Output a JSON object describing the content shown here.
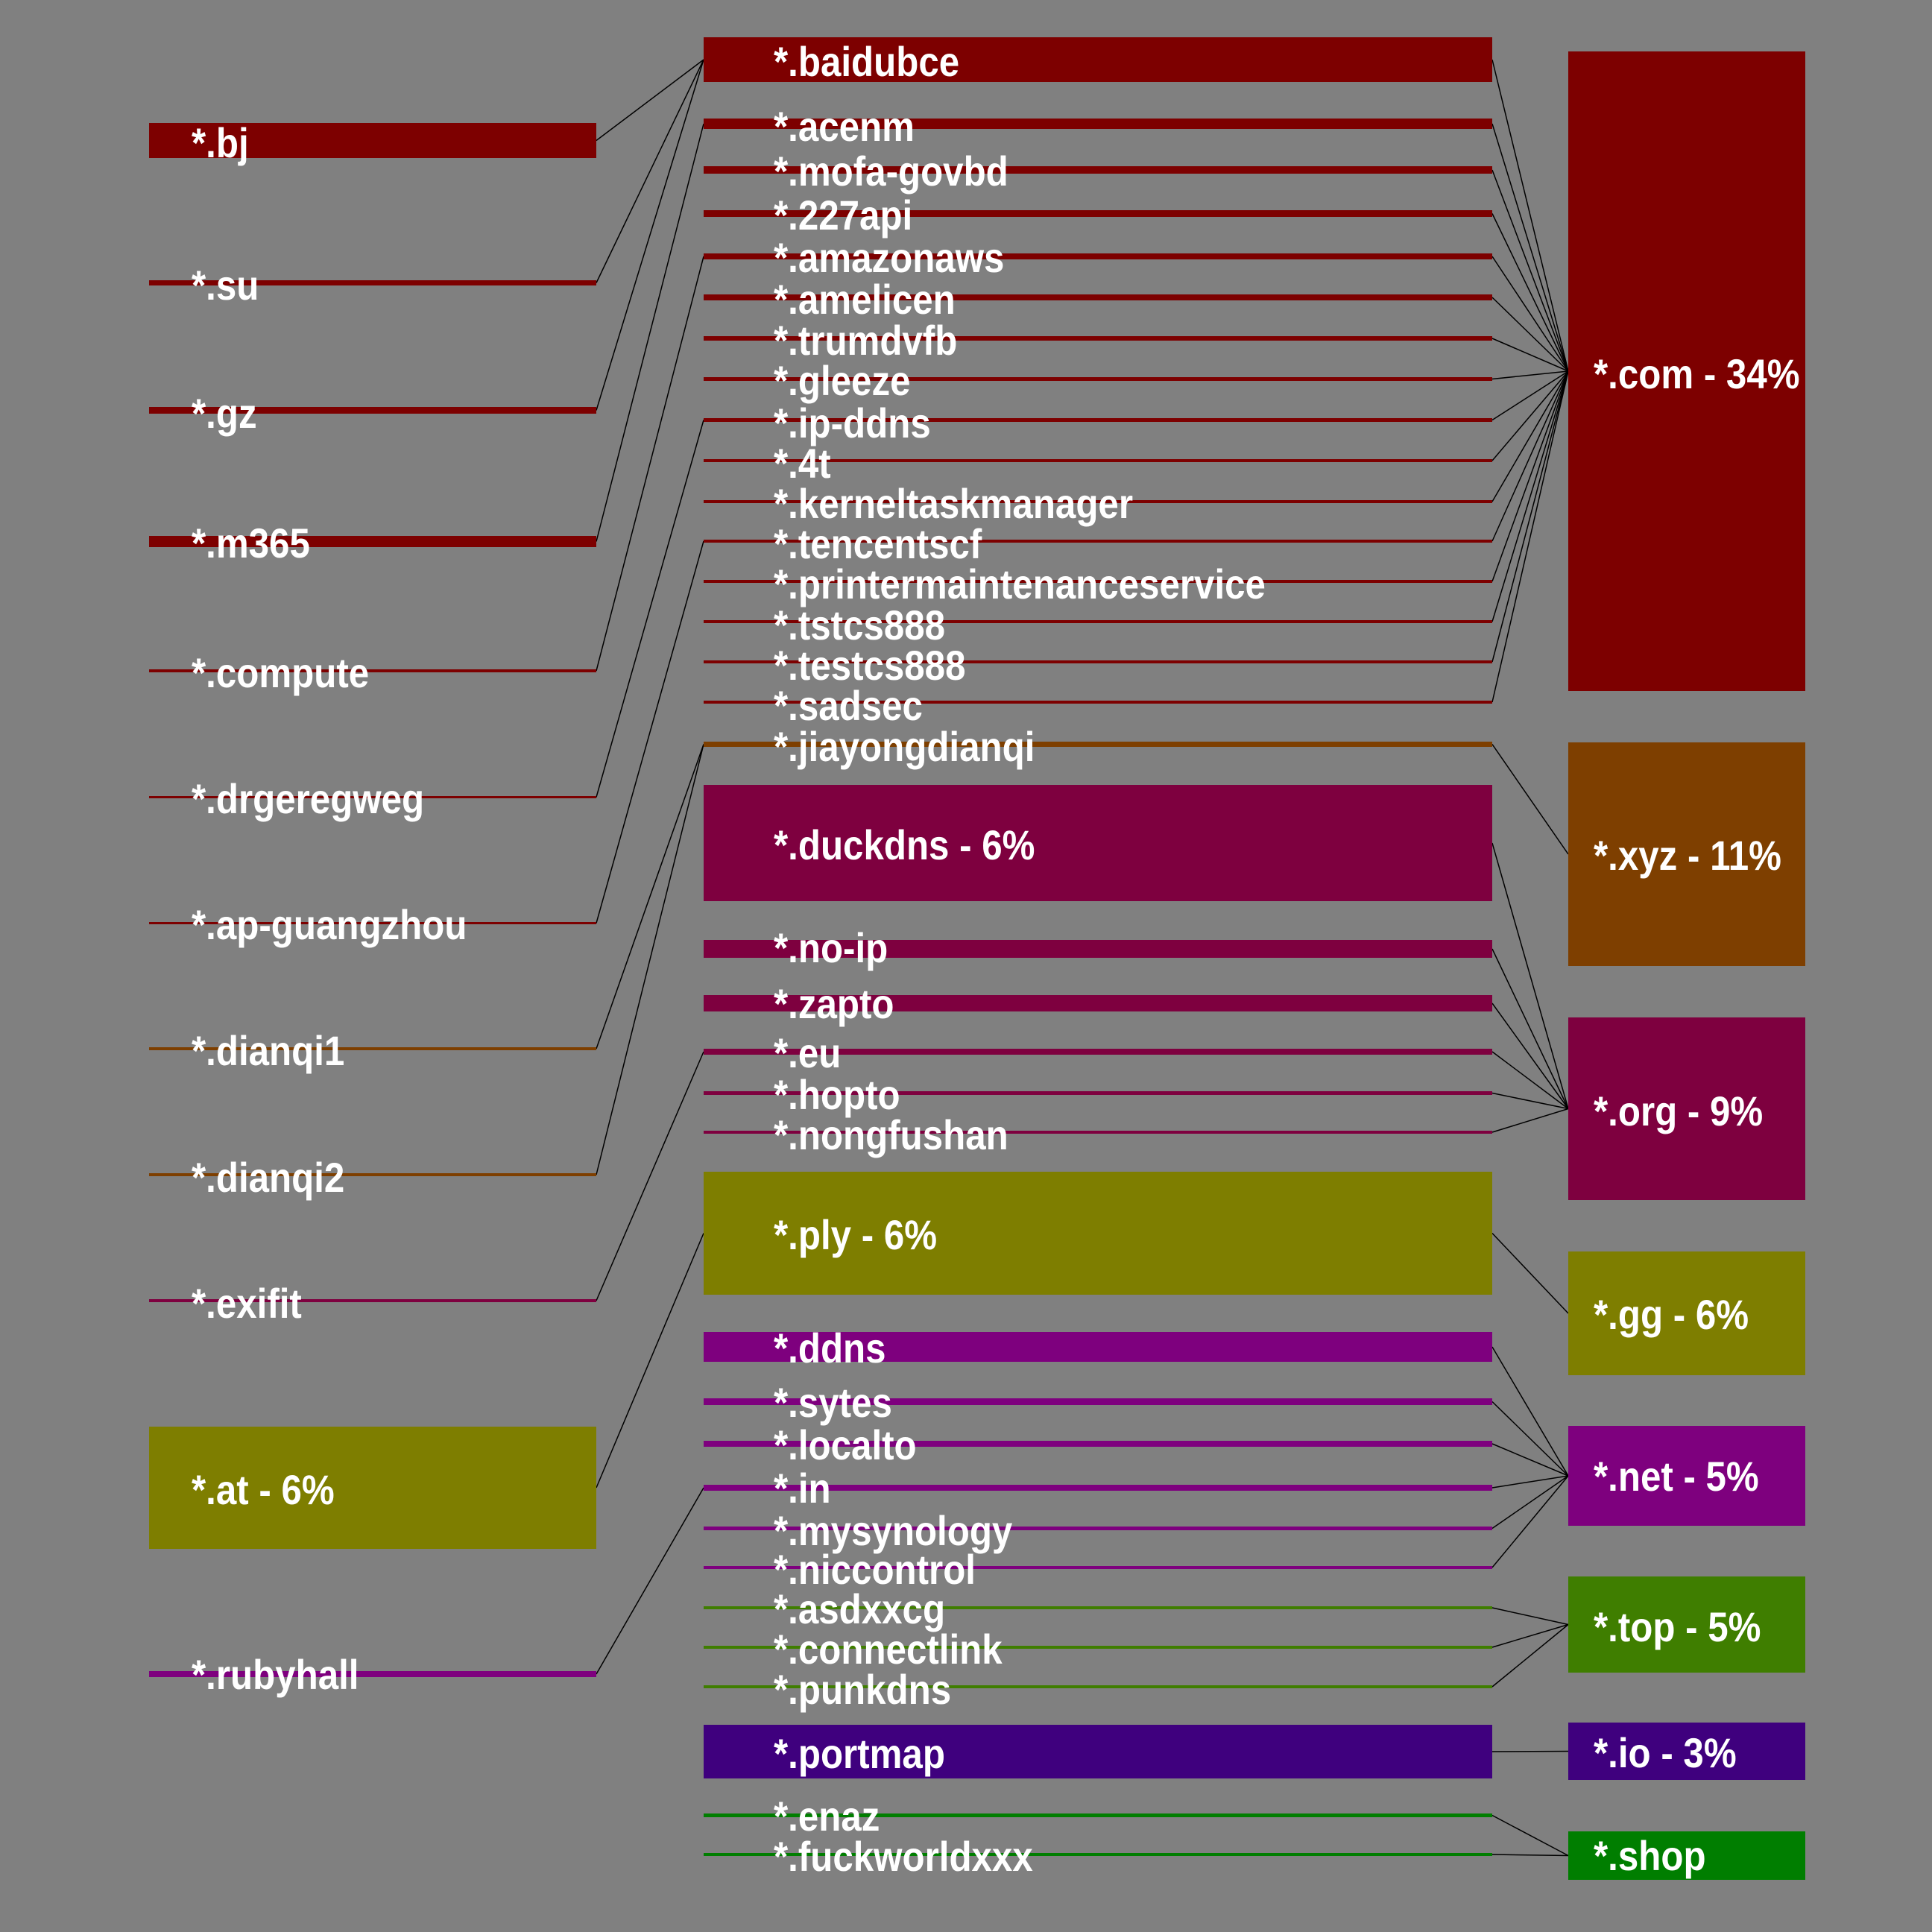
{
  "diagram": {
    "colors": {
      "background": "#808080",
      "com": "#7d0000",
      "xyz": "#7e3f00",
      "org": "#7e003f",
      "gg": "#7e7e00",
      "net": "#7e007e",
      "top": "#3f7e00",
      "io": "#3f007e",
      "shop": "#007e00",
      "link": "#000000"
    },
    "columns": {
      "left": [
        {
          "id": "bj",
          "label": "*.bj",
          "group": "com"
        },
        {
          "id": "su",
          "label": "*.su",
          "group": "com"
        },
        {
          "id": "gz",
          "label": "*.gz",
          "group": "com"
        },
        {
          "id": "m365",
          "label": "*.m365",
          "group": "com"
        },
        {
          "id": "compute",
          "label": "*.compute",
          "group": "com"
        },
        {
          "id": "drgeregweg",
          "label": "*.drgeregweg",
          "group": "com"
        },
        {
          "id": "ap-guangzhou",
          "label": "*.ap-guangzhou",
          "group": "com"
        },
        {
          "id": "dianqi1",
          "label": "*.dianqi1",
          "group": "xyz"
        },
        {
          "id": "dianqi2",
          "label": "*.dianqi2",
          "group": "xyz"
        },
        {
          "id": "exifit",
          "label": "*.exifit",
          "group": "org"
        },
        {
          "id": "at",
          "label": "*.at - 6%",
          "group": "gg"
        },
        {
          "id": "rubyhall",
          "label": "*.rubyhall",
          "group": "net"
        }
      ],
      "middle": [
        {
          "id": "baidubce",
          "label": "*.baidubce",
          "group": "com"
        },
        {
          "id": "acenm",
          "label": "*.acenm",
          "group": "com"
        },
        {
          "id": "mofa-govbd",
          "label": "*.mofa-govbd",
          "group": "com"
        },
        {
          "id": "227api",
          "label": "*.227api",
          "group": "com"
        },
        {
          "id": "amazonaws",
          "label": "*.amazonaws",
          "group": "com"
        },
        {
          "id": "amelicen",
          "label": "*.amelicen",
          "group": "com"
        },
        {
          "id": "trumdvfb",
          "label": "*.trumdvfb",
          "group": "com"
        },
        {
          "id": "gleeze",
          "label": "*.gleeze",
          "group": "com"
        },
        {
          "id": "ip-ddns",
          "label": "*.ip-ddns",
          "group": "com"
        },
        {
          "id": "4t",
          "label": "*.4t",
          "group": "com"
        },
        {
          "id": "kerneltaskmanager",
          "label": "*.kerneltaskmanager",
          "group": "com"
        },
        {
          "id": "tencentscf",
          "label": "*.tencentscf",
          "group": "com"
        },
        {
          "id": "printermaintenanceservice",
          "label": "*.printermaintenanceservice",
          "group": "com"
        },
        {
          "id": "tstcs888",
          "label": "*.tstcs888",
          "group": "com"
        },
        {
          "id": "testcs888",
          "label": "*.testcs888",
          "group": "com"
        },
        {
          "id": "sadsec",
          "label": "*.sadsec",
          "group": "com"
        },
        {
          "id": "jiayongdianqi",
          "label": "*.jiayongdianqi",
          "group": "xyz"
        },
        {
          "id": "duckdns",
          "label": "*.duckdns - 6%",
          "group": "org"
        },
        {
          "id": "no-ip",
          "label": "*.no-ip",
          "group": "org"
        },
        {
          "id": "zapto",
          "label": "*.zapto",
          "group": "org"
        },
        {
          "id": "eu",
          "label": "*.eu",
          "group": "org"
        },
        {
          "id": "hopto",
          "label": "*.hopto",
          "group": "org"
        },
        {
          "id": "nongfushan",
          "label": "*.nongfushan",
          "group": "org"
        },
        {
          "id": "ply",
          "label": "*.ply - 6%",
          "group": "gg"
        },
        {
          "id": "ddns",
          "label": "*.ddns",
          "group": "net"
        },
        {
          "id": "sytes",
          "label": "*.sytes",
          "group": "net"
        },
        {
          "id": "localto",
          "label": "*.localto",
          "group": "net"
        },
        {
          "id": "in",
          "label": "*.in",
          "group": "net"
        },
        {
          "id": "mysynology",
          "label": "*.mysynology",
          "group": "net"
        },
        {
          "id": "niccontrol",
          "label": "*.niccontrol",
          "group": "net"
        },
        {
          "id": "asdxxcg",
          "label": "*.asdxxcg",
          "group": "top"
        },
        {
          "id": "connectlink",
          "label": "*.connectlink",
          "group": "top"
        },
        {
          "id": "punkdns",
          "label": "*.punkdns",
          "group": "top"
        },
        {
          "id": "portmap",
          "label": "*.portmap",
          "group": "io"
        },
        {
          "id": "enaz",
          "label": "*.enaz",
          "group": "shop"
        },
        {
          "id": "fuckworldxxx",
          "label": "*.fuckworldxxx",
          "group": "shop"
        }
      ],
      "right": [
        {
          "id": "com",
          "label": "*.com - 34%",
          "group": "com"
        },
        {
          "id": "xyz",
          "label": "*.xyz - 11%",
          "group": "xyz"
        },
        {
          "id": "org",
          "label": "*.org - 9%",
          "group": "org"
        },
        {
          "id": "gg",
          "label": "*.gg - 6%",
          "group": "gg"
        },
        {
          "id": "net",
          "label": "*.net - 5%",
          "group": "net"
        },
        {
          "id": "top",
          "label": "*.top - 5%",
          "group": "top"
        },
        {
          "id": "io",
          "label": "*.io - 3%",
          "group": "io"
        },
        {
          "id": "shop",
          "label": "*.shop",
          "group": "shop"
        }
      ]
    },
    "links": [
      [
        "bj",
        "baidubce"
      ],
      [
        "su",
        "baidubce"
      ],
      [
        "gz",
        "baidubce"
      ],
      [
        "m365",
        "acenm"
      ],
      [
        "compute",
        "amazonaws"
      ],
      [
        "drgeregweg",
        "ip-ddns"
      ],
      [
        "ap-guangzhou",
        "tencentscf"
      ],
      [
        "dianqi1",
        "jiayongdianqi"
      ],
      [
        "dianqi2",
        "jiayongdianqi"
      ],
      [
        "exifit",
        "eu"
      ],
      [
        "at",
        "ply"
      ],
      [
        "rubyhall",
        "in"
      ],
      [
        "baidubce",
        "com"
      ],
      [
        "acenm",
        "com"
      ],
      [
        "mofa-govbd",
        "com"
      ],
      [
        "227api",
        "com"
      ],
      [
        "amazonaws",
        "com"
      ],
      [
        "amelicen",
        "com"
      ],
      [
        "trumdvfb",
        "com"
      ],
      [
        "gleeze",
        "com"
      ],
      [
        "ip-ddns",
        "com"
      ],
      [
        "4t",
        "com"
      ],
      [
        "kerneltaskmanager",
        "com"
      ],
      [
        "tencentscf",
        "com"
      ],
      [
        "printermaintenanceservice",
        "com"
      ],
      [
        "tstcs888",
        "com"
      ],
      [
        "testcs888",
        "com"
      ],
      [
        "sadsec",
        "com"
      ],
      [
        "jiayongdianqi",
        "xyz"
      ],
      [
        "duckdns",
        "org"
      ],
      [
        "no-ip",
        "org"
      ],
      [
        "zapto",
        "org"
      ],
      [
        "eu",
        "org"
      ],
      [
        "hopto",
        "org"
      ],
      [
        "nongfushan",
        "org"
      ],
      [
        "ply",
        "gg"
      ],
      [
        "ddns",
        "net"
      ],
      [
        "sytes",
        "net"
      ],
      [
        "localto",
        "net"
      ],
      [
        "in",
        "net"
      ],
      [
        "mysynology",
        "net"
      ],
      [
        "niccontrol",
        "net"
      ],
      [
        "asdxxcg",
        "top"
      ],
      [
        "connectlink",
        "top"
      ],
      [
        "punkdns",
        "top"
      ],
      [
        "portmap",
        "io"
      ],
      [
        "enaz",
        "shop"
      ],
      [
        "fuckworldxxx",
        "shop"
      ]
    ]
  }
}
